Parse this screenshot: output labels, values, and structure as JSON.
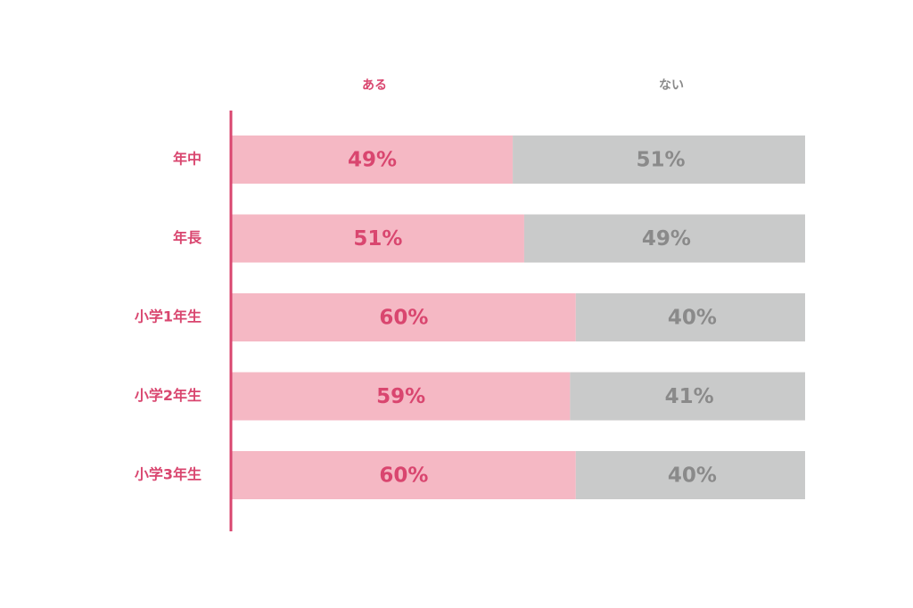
{
  "colors": {
    "aru": "#f5b8c4",
    "nai": "#c9caca",
    "accent": "#d9466f",
    "gray_text": "#8a8a8a",
    "axis": "#d9466f"
  },
  "chart_data": {
    "type": "bar",
    "orientation": "horizontal",
    "stacked": true,
    "categories": [
      "年中",
      "年長",
      "小学1年生",
      "小学2年生",
      "小学3年生"
    ],
    "series": [
      {
        "name": "ある",
        "values": [
          49,
          51,
          60,
          59,
          60
        ],
        "labels": [
          "49%",
          "51%",
          "60%",
          "59%",
          "60%"
        ]
      },
      {
        "name": "ない",
        "values": [
          51,
          49,
          40,
          41,
          40
        ],
        "labels": [
          "51%",
          "49%",
          "40%",
          "41%",
          "40%"
        ]
      }
    ],
    "xlim": [
      0,
      100
    ],
    "unit": "%",
    "grid": false,
    "legend_position": "top"
  }
}
